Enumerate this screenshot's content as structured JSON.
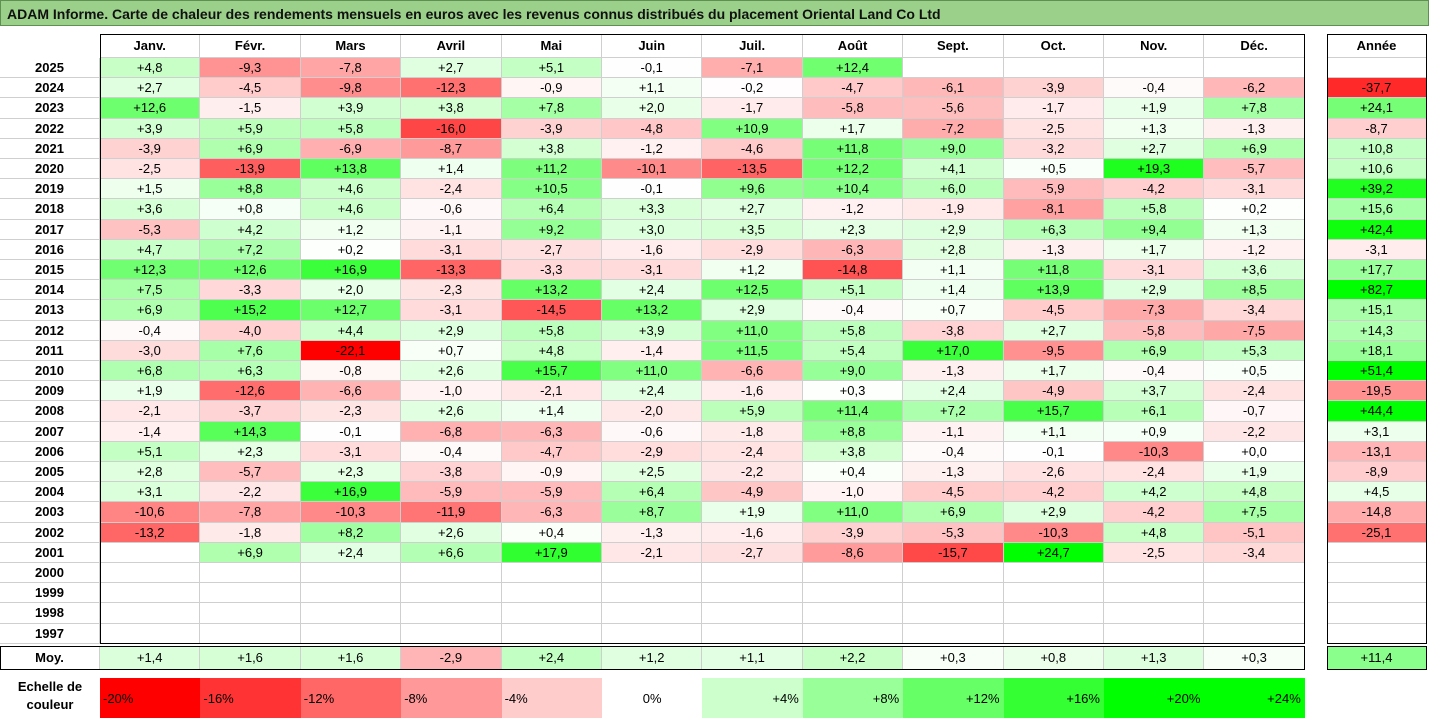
{
  "title": "ADAM Informe. Carte de chaleur des rendements mensuels en euros avec les revenus connus distribués du placement Oriental Land Co Ltd",
  "chart_data": {
    "type": "heatmap",
    "months": [
      "Janv.",
      "Févr.",
      "Mars",
      "Avril",
      "Mai",
      "Juin",
      "Juil.",
      "Août",
      "Sept.",
      "Oct.",
      "Nov.",
      "Déc."
    ],
    "year_column_label": "Année",
    "average_row_label": "Moy.",
    "rows": [
      {
        "year": "2025",
        "values": [
          "+4,8",
          "-9,3",
          "-7,8",
          "+2,7",
          "+5,1",
          "-0,1",
          "-7,1",
          "+12,4",
          "",
          "",
          "",
          ""
        ],
        "annual": ""
      },
      {
        "year": "2024",
        "values": [
          "+2,7",
          "-4,5",
          "-9,8",
          "-12,3",
          "-0,9",
          "+1,1",
          "-0,2",
          "-4,7",
          "-6,1",
          "-3,9",
          "-0,4",
          "-6,2"
        ],
        "annual": "-37,7"
      },
      {
        "year": "2023",
        "values": [
          "+12,6",
          "-1,5",
          "+3,9",
          "+3,8",
          "+7,8",
          "+2,0",
          "-1,7",
          "-5,8",
          "-5,6",
          "-1,7",
          "+1,9",
          "+7,8"
        ],
        "annual": "+24,1"
      },
      {
        "year": "2022",
        "values": [
          "+3,9",
          "+5,9",
          "+5,8",
          "-16,0",
          "-3,9",
          "-4,8",
          "+10,9",
          "+1,7",
          "-7,2",
          "-2,5",
          "+1,3",
          "-1,3"
        ],
        "annual": "-8,7"
      },
      {
        "year": "2021",
        "values": [
          "-3,9",
          "+6,9",
          "-6,9",
          "-8,7",
          "+3,8",
          "-1,2",
          "-4,6",
          "+11,8",
          "+9,0",
          "-3,2",
          "+2,7",
          "+6,9"
        ],
        "annual": "+10,8"
      },
      {
        "year": "2020",
        "values": [
          "-2,5",
          "-13,9",
          "+13,8",
          "+1,4",
          "+11,2",
          "-10,1",
          "-13,5",
          "+12,2",
          "+4,1",
          "+0,5",
          "+19,3",
          "-5,7"
        ],
        "annual": "+10,6"
      },
      {
        "year": "2019",
        "values": [
          "+1,5",
          "+8,8",
          "+4,6",
          "-2,4",
          "+10,5",
          "-0,1",
          "+9,6",
          "+10,4",
          "+6,0",
          "-5,9",
          "-4,2",
          "-3,1"
        ],
        "annual": "+39,2"
      },
      {
        "year": "2018",
        "values": [
          "+3,6",
          "+0,8",
          "+4,6",
          "-0,6",
          "+6,4",
          "+3,3",
          "+2,7",
          "-1,2",
          "-1,9",
          "-8,1",
          "+5,8",
          "+0,2"
        ],
        "annual": "+15,6"
      },
      {
        "year": "2017",
        "values": [
          "-5,3",
          "+4,2",
          "+1,2",
          "-1,1",
          "+9,2",
          "+3,0",
          "+3,5",
          "+2,3",
          "+2,9",
          "+6,3",
          "+9,4",
          "+1,3"
        ],
        "annual": "+42,4"
      },
      {
        "year": "2016",
        "values": [
          "+4,7",
          "+7,2",
          "+0,2",
          "-3,1",
          "-2,7",
          "-1,6",
          "-2,9",
          "-6,3",
          "+2,8",
          "-1,3",
          "+1,7",
          "-1,2"
        ],
        "annual": "-3,1"
      },
      {
        "year": "2015",
        "values": [
          "+12,3",
          "+12,6",
          "+16,9",
          "-13,3",
          "-3,3",
          "-3,1",
          "+1,2",
          "-14,8",
          "+1,1",
          "+11,8",
          "-3,1",
          "+3,6"
        ],
        "annual": "+17,7"
      },
      {
        "year": "2014",
        "values": [
          "+7,5",
          "-3,3",
          "+2,0",
          "-2,3",
          "+13,2",
          "+2,4",
          "+12,5",
          "+5,1",
          "+1,4",
          "+13,9",
          "+2,9",
          "+8,5"
        ],
        "annual": "+82,7"
      },
      {
        "year": "2013",
        "values": [
          "+6,9",
          "+15,2",
          "+12,7",
          "-3,1",
          "-14,5",
          "+13,2",
          "+2,9",
          "-0,4",
          "+0,7",
          "-4,5",
          "-7,3",
          "-3,4"
        ],
        "annual": "+15,1"
      },
      {
        "year": "2012",
        "values": [
          "-0,4",
          "-4,0",
          "+4,4",
          "+2,9",
          "+5,8",
          "+3,9",
          "+11,0",
          "+5,8",
          "-3,8",
          "+2,7",
          "-5,8",
          "-7,5"
        ],
        "annual": "+14,3"
      },
      {
        "year": "2011",
        "values": [
          "-3,0",
          "+7,6",
          "-22,1",
          "+0,7",
          "+4,8",
          "-1,4",
          "+11,5",
          "+5,4",
          "+17,0",
          "-9,5",
          "+6,9",
          "+5,3"
        ],
        "annual": "+18,1"
      },
      {
        "year": "2010",
        "values": [
          "+6,8",
          "+6,3",
          "-0,8",
          "+2,6",
          "+15,7",
          "+11,0",
          "-6,6",
          "+9,0",
          "-1,3",
          "+1,7",
          "-0,4",
          "+0,5"
        ],
        "annual": "+51,4"
      },
      {
        "year": "2009",
        "values": [
          "+1,9",
          "-12,6",
          "-6,6",
          "-1,0",
          "-2,1",
          "+2,4",
          "-1,6",
          "+0,3",
          "+2,4",
          "-4,9",
          "+3,7",
          "-2,4"
        ],
        "annual": "-19,5"
      },
      {
        "year": "2008",
        "values": [
          "-2,1",
          "-3,7",
          "-2,3",
          "+2,6",
          "+1,4",
          "-2,0",
          "+5,9",
          "+11,4",
          "+7,2",
          "+15,7",
          "+6,1",
          "-0,7"
        ],
        "annual": "+44,4"
      },
      {
        "year": "2007",
        "values": [
          "-1,4",
          "+14,3",
          "-0,1",
          "-6,8",
          "-6,3",
          "-0,6",
          "-1,8",
          "+8,8",
          "-1,1",
          "+1,1",
          "+0,9",
          "-2,2"
        ],
        "annual": "+3,1"
      },
      {
        "year": "2006",
        "values": [
          "+5,1",
          "+2,3",
          "-3,1",
          "-0,4",
          "-4,7",
          "-2,9",
          "-2,4",
          "+3,8",
          "-0,4",
          "-0,1",
          "-10,3",
          "+0,0"
        ],
        "annual": "-13,1"
      },
      {
        "year": "2005",
        "values": [
          "+2,8",
          "-5,7",
          "+2,3",
          "-3,8",
          "-0,9",
          "+2,5",
          "-2,2",
          "+0,4",
          "-1,3",
          "-2,6",
          "-2,4",
          "+1,9"
        ],
        "annual": "-8,9"
      },
      {
        "year": "2004",
        "values": [
          "+3,1",
          "-2,2",
          "+16,9",
          "-5,9",
          "-5,9",
          "+6,4",
          "-4,9",
          "-1,0",
          "-4,5",
          "-4,2",
          "+4,2",
          "+4,8"
        ],
        "annual": "+4,5"
      },
      {
        "year": "2003",
        "values": [
          "-10,6",
          "-7,8",
          "-10,3",
          "-11,9",
          "-6,3",
          "+8,7",
          "+1,9",
          "+11,0",
          "+6,9",
          "+2,9",
          "-4,2",
          "+7,5"
        ],
        "annual": "-14,8"
      },
      {
        "year": "2002",
        "values": [
          "-13,2",
          "-1,8",
          "+8,2",
          "+2,6",
          "+0,4",
          "-1,3",
          "-1,6",
          "-3,9",
          "-5,3",
          "-10,3",
          "+4,8",
          "-5,1"
        ],
        "annual": "-25,1"
      },
      {
        "year": "2001",
        "values": [
          "",
          "+6,9",
          "+2,4",
          "+6,6",
          "+17,9",
          "-2,1",
          "-2,7",
          "-8,6",
          "-15,7",
          "+24,7",
          "-2,5",
          "-3,4"
        ],
        "annual": ""
      },
      {
        "year": "2000",
        "values": [
          "",
          "",
          "",
          "",
          "",
          "",
          "",
          "",
          "",
          "",
          "",
          ""
        ],
        "annual": ""
      },
      {
        "year": "1999",
        "values": [
          "",
          "",
          "",
          "",
          "",
          "",
          "",
          "",
          "",
          "",
          "",
          ""
        ],
        "annual": ""
      },
      {
        "year": "1998",
        "values": [
          "",
          "",
          "",
          "",
          "",
          "",
          "",
          "",
          "",
          "",
          "",
          ""
        ],
        "annual": ""
      },
      {
        "year": "1997",
        "values": [
          "",
          "",
          "",
          "",
          "",
          "",
          "",
          "",
          "",
          "",
          "",
          ""
        ],
        "annual": ""
      }
    ],
    "average": {
      "values": [
        "+1,4",
        "+1,6",
        "+1,6",
        "-2,9",
        "+2,4",
        "+1,2",
        "+1,1",
        "+2,2",
        "+0,3",
        "+0,8",
        "+1,3",
        "+0,3"
      ],
      "annual": "+11,4"
    },
    "color_scale": {
      "label": "Echelle de couleur",
      "steps": [
        "-20%",
        "-16%",
        "-12%",
        "-8%",
        "-4%",
        "0%",
        "+4%",
        "+8%",
        "+12%",
        "+16%",
        "+20%",
        "+24%"
      ],
      "negative_color": "#ff0000",
      "positive_color": "#00ff00",
      "neutral_color": "#ffffff"
    }
  },
  "colors": {
    "title_bg": "#9bd08a"
  }
}
